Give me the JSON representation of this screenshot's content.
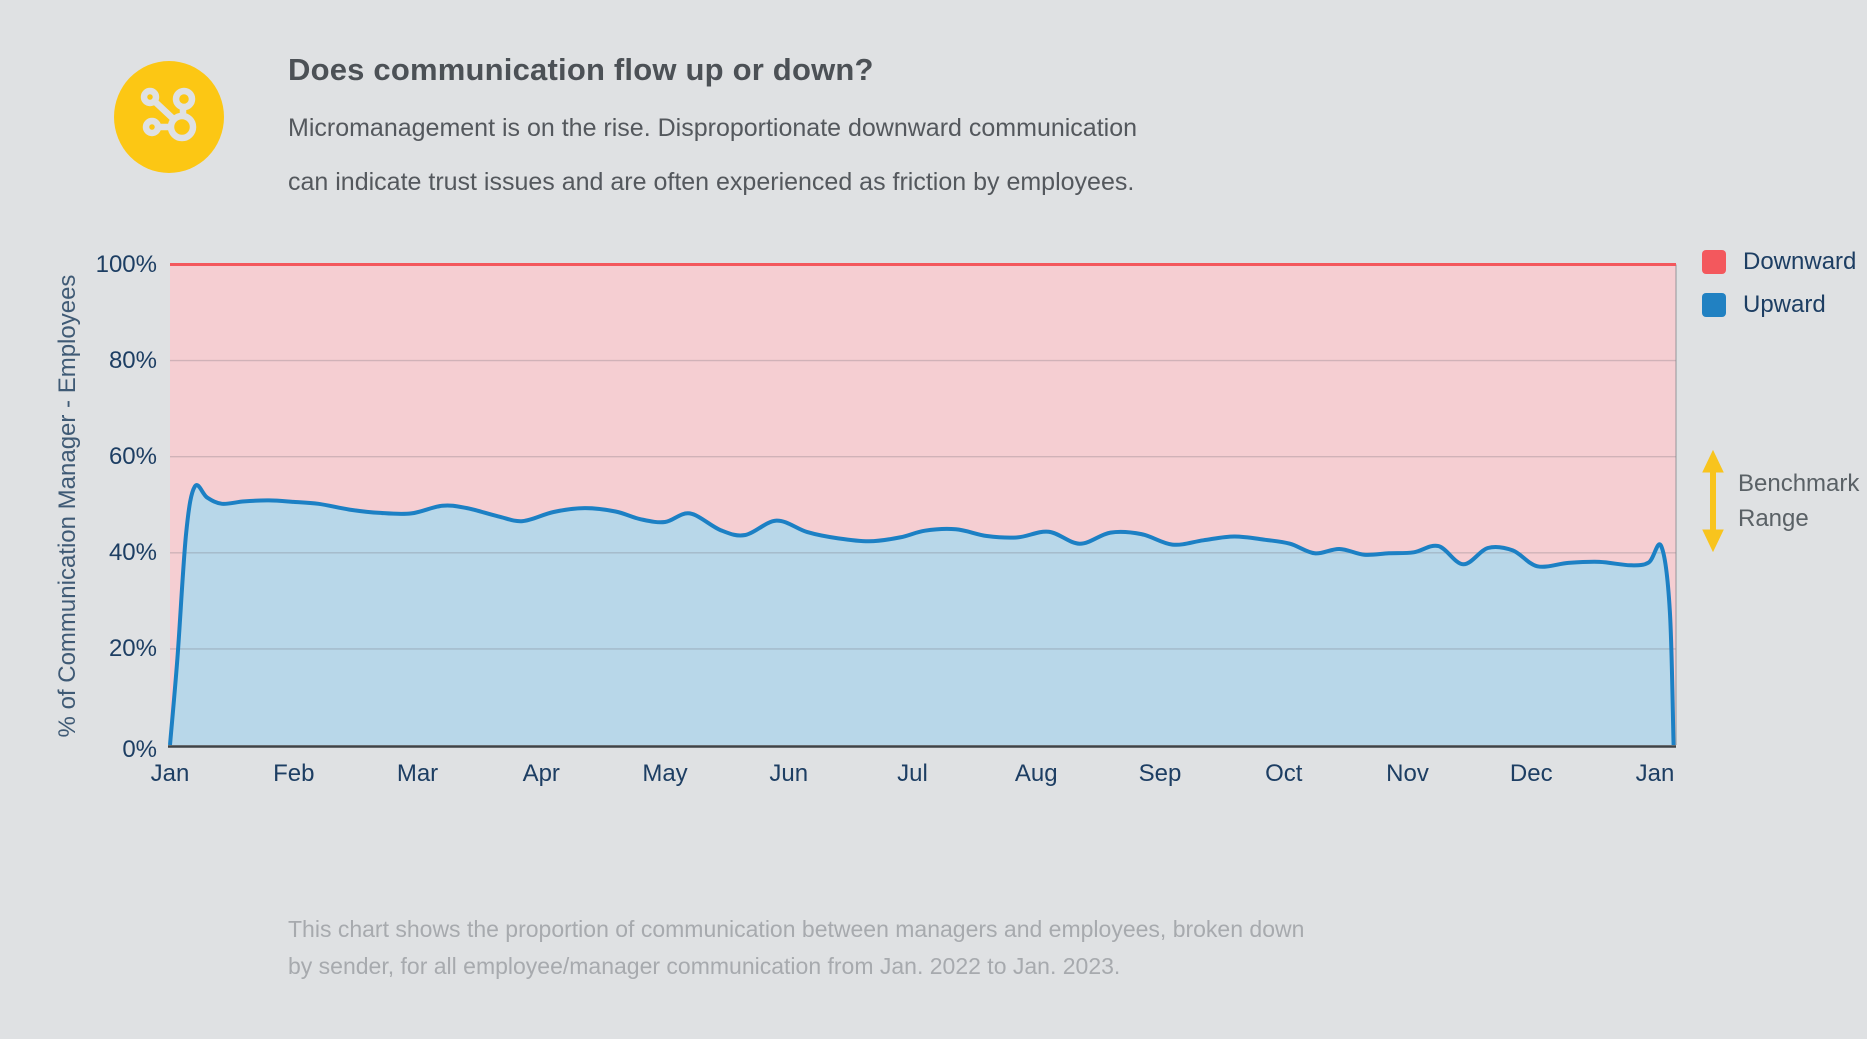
{
  "page": {
    "background": "#dfe1e3"
  },
  "header": {
    "icon": "network-share-icon",
    "icon_bg_color": "#fcc714",
    "title": "Does communication flow up or down?",
    "subtitle_line1": "Micromanagement is on the rise. Disproportionate downward communication",
    "subtitle_line2": "can indicate trust issues and are often experienced as friction by employees."
  },
  "legend": {
    "items": [
      {
        "label": "Downward",
        "color": "#f3585d"
      },
      {
        "label": "Upward",
        "color": "#2181c2"
      }
    ]
  },
  "benchmark": {
    "arrow_color": "#f8c41d",
    "label_line1": "Benchmark",
    "label_line2": "Range"
  },
  "footer": {
    "line1": "This chart shows the proportion of communication between managers and employees, broken down",
    "line2": "by sender, for all employee/manager communication from Jan. 2022 to Jan. 2023."
  },
  "chart_data": {
    "type": "area",
    "title": "Does communication flow up or down?",
    "xlabel": "",
    "ylabel": "% of Communication Manager - Employees",
    "x_tick_labels": [
      "Jan",
      "Feb",
      "Mar",
      "Apr",
      "May",
      "Jun",
      "Jul",
      "Aug",
      "Sep",
      "Oct",
      "Nov",
      "Dec",
      "Jan"
    ],
    "y_tick_labels": [
      "100%",
      "80%",
      "60%",
      "40%",
      "20%",
      "0%"
    ],
    "ylim": [
      0,
      100
    ],
    "x_range": "Jan 2022 to Jan 2023",
    "grid": "horizontal gridlines at 20/40/60/80%",
    "legend_position": "top-right outside plot",
    "colors": {
      "downward_fill": "#f5ced2",
      "downward_line": "#f3585d",
      "upward_fill": "#b8d7e9",
      "upward_line": "#1c80c4",
      "axis_line": "#3e4347",
      "gridline": "rgba(110,108,118,0.28)"
    },
    "series": [
      {
        "name": "Downward",
        "definition": "100% minus Upward; stacked area filling plot to the 100% line",
        "fill": "#f5ced2",
        "line": "#f3585d"
      },
      {
        "name": "Upward",
        "fill": "#b8d7e9",
        "line": "#1c80c4",
        "x_unit": "months from Jan 2022",
        "y_unit": "percent",
        "points": [
          [
            0.0,
            0
          ],
          [
            0.06,
            18
          ],
          [
            0.13,
            44
          ],
          [
            0.2,
            53.8
          ],
          [
            0.3,
            51.5
          ],
          [
            0.42,
            50.2
          ],
          [
            0.6,
            50.7
          ],
          [
            0.8,
            50.9
          ],
          [
            1.0,
            50.6
          ],
          [
            1.2,
            50.2
          ],
          [
            1.45,
            49.0
          ],
          [
            1.7,
            48.3
          ],
          [
            1.95,
            48.2
          ],
          [
            2.2,
            49.8
          ],
          [
            2.4,
            49.3
          ],
          [
            2.65,
            47.6
          ],
          [
            2.85,
            46.6
          ],
          [
            3.1,
            48.5
          ],
          [
            3.35,
            49.3
          ],
          [
            3.6,
            48.6
          ],
          [
            3.8,
            47.0
          ],
          [
            4.0,
            46.4
          ],
          [
            4.2,
            48.2
          ],
          [
            4.45,
            44.7
          ],
          [
            4.65,
            43.7
          ],
          [
            4.9,
            46.7
          ],
          [
            5.15,
            44.3
          ],
          [
            5.4,
            43.0
          ],
          [
            5.65,
            42.4
          ],
          [
            5.9,
            43.2
          ],
          [
            6.1,
            44.6
          ],
          [
            6.35,
            44.9
          ],
          [
            6.6,
            43.5
          ],
          [
            6.85,
            43.2
          ],
          [
            7.1,
            44.4
          ],
          [
            7.35,
            41.9
          ],
          [
            7.6,
            44.2
          ],
          [
            7.85,
            43.9
          ],
          [
            8.1,
            41.7
          ],
          [
            8.35,
            42.6
          ],
          [
            8.6,
            43.4
          ],
          [
            8.85,
            42.7
          ],
          [
            9.05,
            41.9
          ],
          [
            9.25,
            39.9
          ],
          [
            9.45,
            40.8
          ],
          [
            9.65,
            39.6
          ],
          [
            9.85,
            39.9
          ],
          [
            10.05,
            40.1
          ],
          [
            10.25,
            41.4
          ],
          [
            10.45,
            37.6
          ],
          [
            10.65,
            41.0
          ],
          [
            10.85,
            40.5
          ],
          [
            11.05,
            37.2
          ],
          [
            11.3,
            37.9
          ],
          [
            11.55,
            38.1
          ],
          [
            11.8,
            37.4
          ],
          [
            11.95,
            38.0
          ],
          [
            12.05,
            41.4
          ],
          [
            12.12,
            28
          ],
          [
            12.15,
            0
          ]
        ]
      }
    ]
  }
}
